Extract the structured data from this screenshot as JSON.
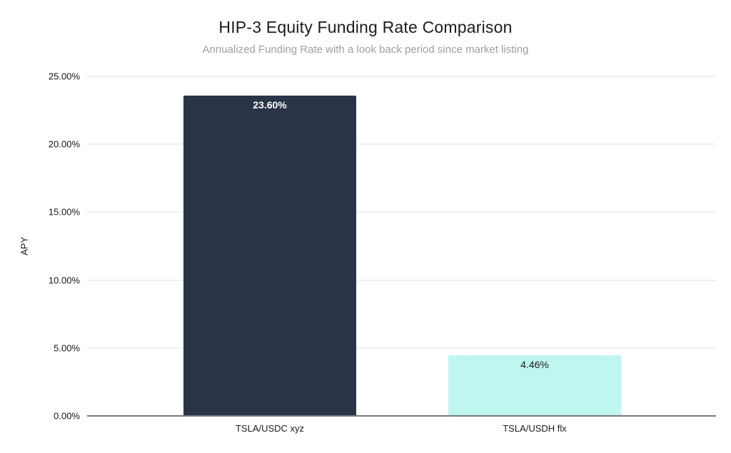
{
  "header": {
    "title": "HIP-3 Equity Funding Rate Comparison",
    "subtitle": "Annualized Funding Rate with a look back period since market listing"
  },
  "chart_data": {
    "type": "bar",
    "title": "HIP-3 Equity Funding Rate Comparison",
    "subtitle": "Annualized Funding Rate with a look back period since market listing",
    "categories": [
      "TSLA/USDC xyz",
      "TSLA/USDH flx"
    ],
    "values": [
      23.6,
      4.46
    ],
    "value_labels": [
      "23.60%",
      "4.46%"
    ],
    "bar_colors": [
      "#2a3447",
      "#bff6f0"
    ],
    "value_label_colors": [
      "#ffffff",
      "#1c1c1c"
    ],
    "xlabel": "",
    "ylabel": "APY",
    "ylim": [
      0,
      25
    ],
    "yticks": [
      0,
      5,
      10,
      15,
      20,
      25
    ],
    "ytick_labels": [
      "0.00%",
      "5.00%",
      "10.00%",
      "15.00%",
      "20.00%",
      "25.00%"
    ],
    "grid": true,
    "legend": false,
    "colors": {
      "grid": "#e2e2e2",
      "axis": "#7a7a7a",
      "title": "#1c1c1c",
      "subtitle": "#9e9e9e",
      "background": "#ffffff"
    }
  }
}
